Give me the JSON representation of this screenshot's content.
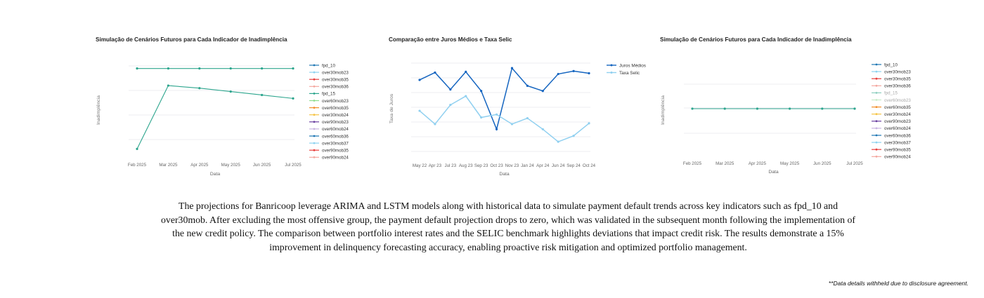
{
  "caption": "The projections for Banricoop leverage ARIMA and LSTM models along with historical data to simulate payment default trends across key indicators such as fpd_10 and over30mob. After excluding the most offensive group, the payment default projection drops to zero, which was validated in the subsequent month following the implementation of the new credit policy. The comparison between portfolio interest rates and the SELIC benchmark highlights deviations that impact credit risk. The results demonstrate a 15% improvement in delinquency forecasting accuracy, enabling proactive risk mitigation and optimized portfolio management.",
  "disclaimer": "**Data details withheld due to disclosure agreement.",
  "chart_data": [
    {
      "type": "line",
      "title": "Simulação de Cenários Futuros para Cada Indicador de Inadimplência",
      "xlabel": "Data",
      "ylabel": "Inadimplência",
      "categories": [
        "Feb 2025",
        "Mar 2025",
        "Apr 2025",
        "May 2025",
        "Jun 2025",
        "Jul 2025"
      ],
      "ylim": [
        0,
        1
      ],
      "grid": true,
      "legend_position": "right",
      "legend": [
        "fpd_10",
        "over30mob23",
        "over30mob35",
        "over30mob36",
        "fpd_15",
        "over60mob23",
        "over60mob35",
        "over30mob24",
        "over90mob23",
        "over60mob24",
        "over60mob36",
        "over30mob37",
        "over90mob35",
        "over90mob24"
      ],
      "series": [
        {
          "name": "fpd_10",
          "color": "#2ca58d",
          "values": [
            0.97,
            0.97,
            0.97,
            0.97,
            0.97,
            0.97
          ]
        },
        {
          "name": "fpd_15",
          "color": "#2ca58d",
          "values": [
            0.03,
            0.77,
            0.74,
            0.7,
            0.66,
            0.62
          ]
        }
      ],
      "legend_colors": [
        "#1f77b4",
        "#8dd3f0",
        "#e8403e",
        "#f4a8a0",
        "#2ca58d",
        "#8fdc8f",
        "#f28e2b",
        "#f6c445",
        "#6a3fa0",
        "#c8b4e0",
        "#1f77b4",
        "#8dd3f0",
        "#e8403e",
        "#f4a8a0"
      ]
    },
    {
      "type": "line",
      "title": "Comparação entre Juros Médios e Taxa Selic",
      "xlabel": "Data",
      "ylabel": "Taxa de Juros",
      "categories": [
        "May 22",
        "Apr 23",
        "Jul 23",
        "Aug 23",
        "Sep 23",
        "Oct 23",
        "Nov 23",
        "Jan 24",
        "Apr 24",
        "Jun 24",
        "Sep 24",
        "Oct 24"
      ],
      "ylim": [
        0,
        1
      ],
      "grid": true,
      "legend_position": "top-right",
      "series": [
        {
          "name": "Juros Médios",
          "color": "#1565c0",
          "values": [
            0.81,
            0.91,
            0.68,
            0.92,
            0.66,
            0.14,
            0.97,
            0.73,
            0.66,
            0.89,
            0.93,
            0.9
          ]
        },
        {
          "name": "Taxa Selic",
          "color": "#90d0f0",
          "values": [
            0.39,
            0.21,
            0.47,
            0.59,
            0.3,
            0.34,
            0.21,
            0.29,
            0.14,
            -0.03,
            0.05,
            0.22
          ]
        }
      ]
    },
    {
      "type": "line",
      "title": "Simulação de Cenários Futuros para Cada Indicador de Inadimplência",
      "xlabel": "Data",
      "ylabel": "Inadimplência",
      "categories": [
        "Feb 2025",
        "Mar 2025",
        "Apr 2025",
        "May 2025",
        "Jun 2025",
        "Jul 2025"
      ],
      "ylim": [
        0,
        1
      ],
      "grid": true,
      "legend_position": "right",
      "legend": [
        "fpd_10",
        "over30mob23",
        "over30mob35",
        "over30mob36",
        "fpd_15",
        "over60mob23",
        "over60mob35",
        "over30mob24",
        "over90mob23",
        "over60mob24",
        "over60mob36",
        "over30mob37",
        "over90mob35",
        "over90mob24"
      ],
      "series": [
        {
          "name": "fpd_10",
          "color": "#2ca58d",
          "values": [
            0.5,
            0.5,
            0.5,
            0.5,
            0.5,
            0.5
          ]
        }
      ],
      "legend_colors": [
        "#1f77b4",
        "#8dd3f0",
        "#e8403e",
        "#f4a8a0",
        "#8fcfc0",
        "#c8ecc8",
        "#f28e2b",
        "#f6c445",
        "#6a3fa0",
        "#c8b4e0",
        "#1f77b4",
        "#8dd3f0",
        "#e8403e",
        "#f4a8a0"
      ]
    }
  ]
}
